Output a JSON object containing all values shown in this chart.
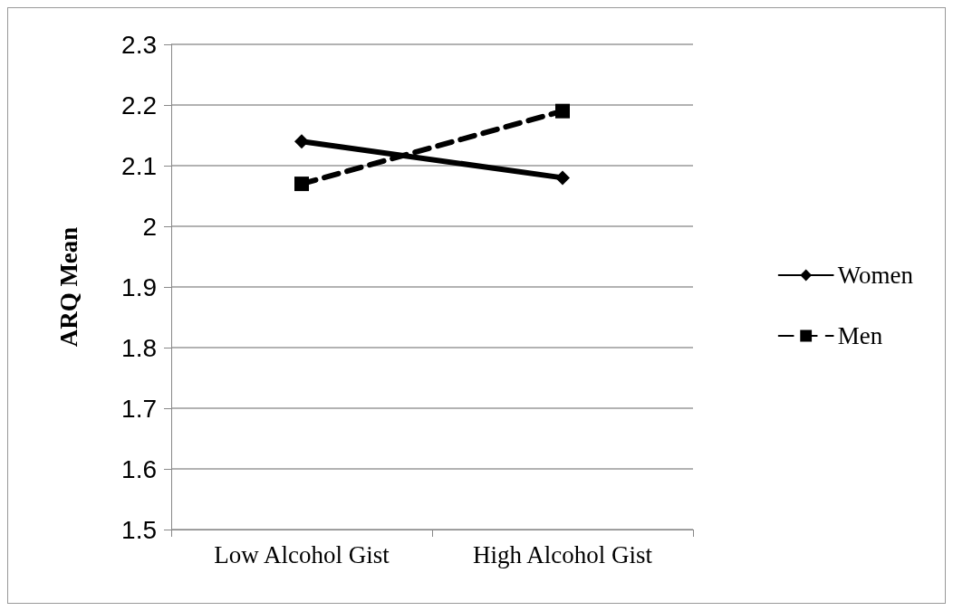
{
  "chart_data": {
    "type": "line",
    "ylabel": "ARQ Mean",
    "categories": [
      "Low Alcohol Gist",
      "High Alcohol Gist"
    ],
    "ylim": [
      1.5,
      2.3
    ],
    "yticks": [
      1.5,
      1.6,
      1.7,
      1.8,
      1.9,
      2,
      2.1,
      2.2,
      2.3
    ],
    "grid": "y",
    "legend": "right",
    "series": [
      {
        "name": "Women",
        "color": "#000000",
        "values": [
          2.14,
          2.08
        ],
        "marker": "diamond",
        "line_style": "solid"
      },
      {
        "name": "Men",
        "color": "#000000",
        "values": [
          2.07,
          2.19
        ],
        "marker": "square",
        "line_style": "dashed"
      }
    ]
  }
}
